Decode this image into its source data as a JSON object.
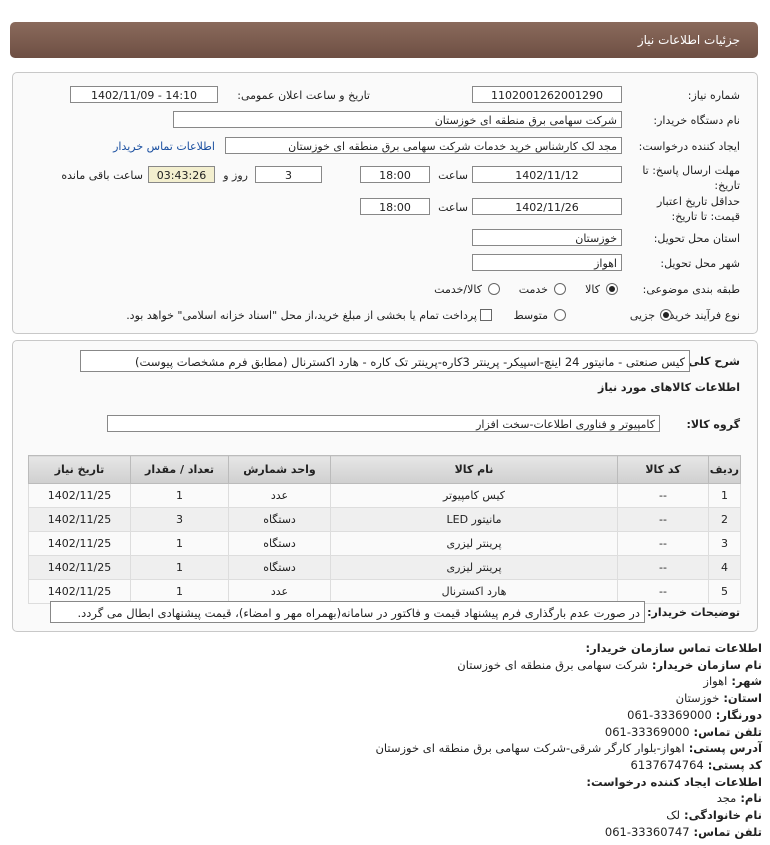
{
  "header": {
    "title": "جزئیات اطلاعات نیاز"
  },
  "form": {
    "need_number": {
      "label": "شماره نیاز:",
      "value": "1102001262001290"
    },
    "announce": {
      "label": "تاریخ و ساعت اعلان عمومی:",
      "value": "1402/11/09 - 14:10"
    },
    "buyer_org": {
      "label": "نام دستگاه خریدار:",
      "value": "شرکت سهامی برق منطقه ای خوزستان"
    },
    "creator": {
      "label": "ایجاد کننده درخواست:",
      "value": "مجد لک کارشناس خرید خدمات شرکت سهامی برق منطقه ای خوزستان",
      "contact_link": "اطلاعات تماس خریدار"
    },
    "deadline": {
      "label": "مهلت ارسال پاسخ: تا تاریخ:",
      "date": "1402/11/12",
      "time_label": "ساعت",
      "time": "18:00",
      "days": "3",
      "days_label": "روز و",
      "remaining": "03:43:26",
      "remaining_label": "ساعت باقی مانده"
    },
    "validity": {
      "label": "حداقل تاریخ اعتبار قیمت: تا تاریخ:",
      "date": "1402/11/26",
      "time_label": "ساعت",
      "time": "18:00"
    },
    "province": {
      "label": "استان محل تحویل:",
      "value": "خوزستان"
    },
    "city": {
      "label": "شهر محل تحویل:",
      "value": "اهواز"
    },
    "category": {
      "label": "طبقه بندی موضوعی:",
      "options": [
        "کالا",
        "خدمت",
        "کالا/خدمت"
      ]
    },
    "process": {
      "label": "نوع فرآیند خرید :",
      "options": [
        "جزیی",
        "متوسط"
      ],
      "treasury_note": "پرداخت تمام یا بخشی از مبلغ خرید،از محل \"اسناد خزانه اسلامی\" خواهد بود."
    }
  },
  "needs": {
    "summary_label": "شرح کلی نیاز:",
    "summary": "کیس صنعتی - مانیتور 24 اینچ-اسپیکر- پرینتر 3کاره-پرینتر تک کاره - هارد اکسترنال (مطابق فرم مشخصات پیوست)",
    "goods_title": "اطلاعات کالاهای مورد نیاز",
    "group_label": "گروه کالا:",
    "group": "کامپیوتر و فناوری اطلاعات-سخت افزار",
    "table": {
      "headers": [
        "ردیف",
        "کد کالا",
        "نام کالا",
        "واحد شمارش",
        "تعداد / مقدار",
        "تاریخ نیاز"
      ],
      "rows": [
        [
          1,
          "--",
          "کیس کامپیوتر",
          "عدد",
          1,
          "1402/11/25"
        ],
        [
          2,
          "--",
          "مانیتور LED",
          "دستگاه",
          3,
          "1402/11/25"
        ],
        [
          3,
          "--",
          "پرینتر لیزری",
          "دستگاه",
          1,
          "1402/11/25"
        ],
        [
          4,
          "--",
          "پرینتر لیزری",
          "دستگاه",
          1,
          "1402/11/25"
        ],
        [
          5,
          "--",
          "هارد اکسترنال",
          "عدد",
          1,
          "1402/11/25"
        ]
      ]
    },
    "notes_label": "توضیحات خریدار:",
    "notes": "در صورت عدم بارگذاری فرم پیشنهاد قیمت و فاکتور در سامانه(بهمراه مهر و امضاء)، قیمت پیشنهادی ابطال می گردد."
  },
  "contact": {
    "title": "اطلاعات تماس سازمان خریدار:",
    "fields": [
      {
        "label": "نام سازمان خریدار:",
        "value": "شرکت سهامی برق منطقه ای خوزستان"
      },
      {
        "label": "شهر:",
        "value": "اهواز"
      },
      {
        "label": "استان:",
        "value": "خوزستان"
      },
      {
        "label": "دورنگار:",
        "value": "33369000-061"
      },
      {
        "label": "تلفن تماس:",
        "value": "33369000-061"
      },
      {
        "label": "آدرس پستی:",
        "value": "اهواز-بلوار کارگر شرقی-شرکت سهامی برق منطقه ای خوزستان"
      },
      {
        "label": "کد پستی:",
        "value": "6137674764"
      }
    ],
    "creator_title": "اطلاعات ایجاد کننده درخواست:",
    "creator_fields": [
      {
        "label": "نام:",
        "value": "مجد"
      },
      {
        "label": "نام خانوادگی:",
        "value": "لک"
      },
      {
        "label": "تلفن تماس:",
        "value": "33360747-061"
      }
    ]
  }
}
